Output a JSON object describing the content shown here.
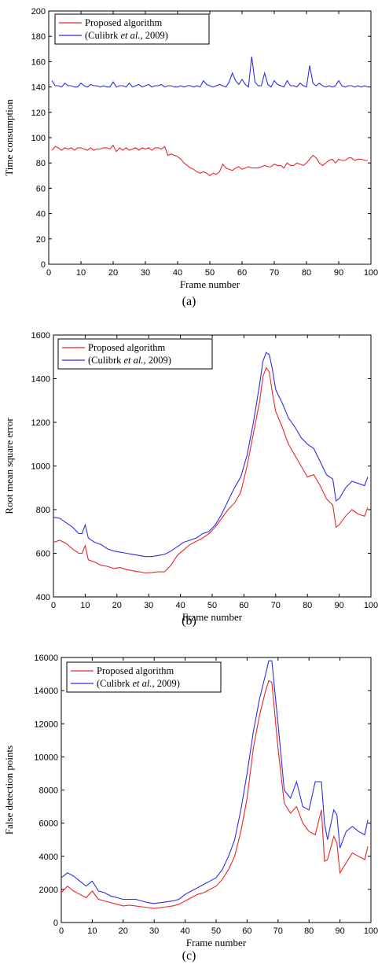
{
  "captions": [
    "(a)",
    "(b)",
    "(c)"
  ],
  "chart_data": [
    {
      "type": "line",
      "caption": "(a)",
      "xlabel": "Frame number",
      "ylabel": "Time consumption",
      "xlim": [
        0,
        100
      ],
      "ylim": [
        0,
        200
      ],
      "xticks": [
        0,
        10,
        20,
        30,
        40,
        50,
        60,
        70,
        80,
        90,
        100
      ],
      "yticks": [
        0,
        20,
        40,
        60,
        80,
        100,
        120,
        140,
        160,
        180,
        200
      ],
      "legend_position": "top-left",
      "series": [
        {
          "name": "Proposed algorithm",
          "color": "#e8262b",
          "x": [
            1,
            2,
            3,
            4,
            5,
            6,
            7,
            8,
            9,
            10,
            11,
            12,
            13,
            14,
            15,
            16,
            17,
            18,
            19,
            20,
            21,
            22,
            23,
            24,
            25,
            26,
            27,
            28,
            29,
            30,
            31,
            32,
            33,
            34,
            35,
            36,
            37,
            38,
            39,
            40,
            41,
            42,
            43,
            44,
            45,
            46,
            47,
            48,
            49,
            50,
            51,
            52,
            53,
            54,
            55,
            56,
            57,
            58,
            59,
            60,
            61,
            62,
            63,
            64,
            65,
            66,
            67,
            68,
            69,
            70,
            71,
            72,
            73,
            74,
            75,
            76,
            77,
            78,
            79,
            80,
            81,
            82,
            83,
            84,
            85,
            86,
            87,
            88,
            89,
            90,
            91,
            92,
            93,
            94,
            95,
            96,
            97,
            98,
            99
          ],
          "y": [
            90,
            93,
            92,
            90,
            92,
            91,
            92,
            90,
            92,
            92,
            91,
            90,
            92,
            90,
            91,
            91,
            92,
            92,
            91,
            94,
            89,
            92,
            90,
            92,
            90,
            91,
            92,
            90,
            92,
            91,
            92,
            90,
            92,
            92,
            91,
            93,
            86,
            87,
            86,
            85,
            83,
            80,
            78,
            76,
            75,
            73,
            72,
            73,
            72,
            70,
            72,
            71,
            73,
            79,
            76,
            75,
            74,
            76,
            77,
            75,
            76,
            77,
            76,
            76,
            76,
            77,
            78,
            77,
            77,
            79,
            78,
            78,
            76,
            80,
            78,
            78,
            80,
            79,
            78,
            80,
            83,
            86,
            84,
            80,
            78,
            80,
            82,
            83,
            80,
            83,
            82,
            82,
            84,
            84,
            82,
            83,
            83,
            82,
            82
          ]
        },
        {
          "name": "(Culibrk et al., 2009)",
          "color": "#2e2ee6",
          "x": [
            1,
            2,
            3,
            4,
            5,
            6,
            7,
            8,
            9,
            10,
            11,
            12,
            13,
            14,
            15,
            16,
            17,
            18,
            19,
            20,
            21,
            22,
            23,
            24,
            25,
            26,
            27,
            28,
            29,
            30,
            31,
            32,
            33,
            34,
            35,
            36,
            37,
            38,
            39,
            40,
            41,
            42,
            43,
            44,
            45,
            46,
            47,
            48,
            49,
            50,
            51,
            52,
            53,
            54,
            55,
            56,
            57,
            58,
            59,
            60,
            61,
            62,
            63,
            64,
            65,
            66,
            67,
            68,
            69,
            70,
            71,
            72,
            73,
            74,
            75,
            76,
            77,
            78,
            79,
            80,
            81,
            82,
            83,
            84,
            85,
            86,
            87,
            88,
            89,
            90,
            91,
            92,
            93,
            94,
            95,
            96,
            97,
            98,
            99
          ],
          "y": [
            145,
            141,
            141,
            140,
            143,
            141,
            141,
            140,
            140,
            143,
            141,
            140,
            142,
            141,
            141,
            140,
            141,
            140,
            140,
            144,
            140,
            141,
            141,
            140,
            143,
            140,
            141,
            142,
            140,
            141,
            142,
            140,
            141,
            141,
            142,
            140,
            141,
            141,
            140,
            140,
            141,
            140,
            141,
            141,
            140,
            141,
            140,
            145,
            142,
            141,
            140,
            141,
            142,
            141,
            140,
            144,
            151,
            145,
            142,
            146,
            142,
            140,
            164,
            144,
            141,
            141,
            151,
            142,
            140,
            145,
            142,
            141,
            140,
            145,
            141,
            141,
            140,
            143,
            141,
            140,
            157,
            143,
            141,
            143,
            141,
            140,
            141,
            140,
            141,
            145,
            141,
            140,
            141,
            141,
            140,
            141,
            140,
            141,
            140
          ]
        }
      ]
    },
    {
      "type": "line",
      "caption": "(b)",
      "xlabel": "Frame number",
      "ylabel": "Root mean square error",
      "xlim": [
        0,
        100
      ],
      "ylim": [
        400,
        1600
      ],
      "xticks": [
        0,
        10,
        20,
        30,
        40,
        50,
        60,
        70,
        80,
        90,
        100
      ],
      "yticks": [
        400,
        600,
        800,
        1000,
        1200,
        1400,
        1600
      ],
      "legend_position": "top-left",
      "series": [
        {
          "name": "Proposed algorithm",
          "color": "#e8262b",
          "x": [
            0,
            2,
            4,
            6,
            8,
            9,
            10,
            11,
            13,
            15,
            17,
            19,
            21,
            23,
            25,
            27,
            29,
            31,
            33,
            35,
            37,
            39,
            41,
            43,
            45,
            47,
            49,
            51,
            53,
            55,
            57,
            59,
            61,
            63,
            65,
            66,
            67,
            68,
            69,
            70,
            72,
            74,
            76,
            78,
            80,
            82,
            84,
            86,
            88,
            89,
            90,
            92,
            94,
            96,
            98,
            99
          ],
          "y": [
            650,
            660,
            645,
            620,
            600,
            600,
            635,
            570,
            560,
            545,
            540,
            530,
            535,
            525,
            520,
            515,
            510,
            512,
            515,
            515,
            545,
            590,
            615,
            640,
            655,
            670,
            690,
            720,
            760,
            800,
            830,
            880,
            1000,
            1150,
            1300,
            1410,
            1450,
            1430,
            1330,
            1250,
            1180,
            1100,
            1050,
            1000,
            950,
            960,
            910,
            850,
            820,
            720,
            730,
            770,
            800,
            780,
            770,
            810
          ]
        },
        {
          "name": "(Culibrk et al., 2009)",
          "color": "#2e2ee6",
          "x": [
            0,
            2,
            4,
            6,
            8,
            9,
            10,
            11,
            13,
            15,
            17,
            19,
            21,
            23,
            25,
            27,
            29,
            31,
            33,
            35,
            37,
            39,
            41,
            43,
            45,
            47,
            49,
            51,
            53,
            55,
            57,
            59,
            61,
            63,
            65,
            66,
            67,
            68,
            69,
            70,
            72,
            74,
            76,
            78,
            80,
            82,
            84,
            86,
            88,
            89,
            90,
            92,
            94,
            96,
            98,
            99
          ],
          "y": [
            765,
            760,
            740,
            720,
            690,
            690,
            730,
            670,
            650,
            640,
            620,
            610,
            605,
            600,
            595,
            590,
            585,
            585,
            590,
            595,
            610,
            630,
            650,
            660,
            670,
            690,
            700,
            730,
            780,
            840,
            900,
            950,
            1050,
            1200,
            1380,
            1480,
            1520,
            1510,
            1440,
            1350,
            1290,
            1220,
            1180,
            1130,
            1100,
            1080,
            1020,
            960,
            940,
            840,
            850,
            900,
            930,
            920,
            910,
            950
          ]
        }
      ]
    },
    {
      "type": "line",
      "caption": "(c)",
      "xlabel": "Frame number",
      "ylabel": "False detection points",
      "xlim": [
        0,
        100
      ],
      "ylim": [
        0,
        16000
      ],
      "xticks": [
        0,
        10,
        20,
        30,
        40,
        50,
        60,
        70,
        80,
        90,
        100
      ],
      "yticks": [
        0,
        2000,
        4000,
        6000,
        8000,
        10000,
        12000,
        14000,
        16000
      ],
      "legend_position": "top-left",
      "series": [
        {
          "name": "Proposed algorithm",
          "color": "#e8262b",
          "x": [
            0,
            2,
            4,
            6,
            8,
            10,
            12,
            14,
            16,
            18,
            20,
            22,
            24,
            26,
            28,
            30,
            32,
            34,
            36,
            38,
            40,
            42,
            44,
            46,
            48,
            50,
            52,
            54,
            56,
            58,
            60,
            62,
            64,
            66,
            67,
            68,
            70,
            72,
            74,
            76,
            78,
            80,
            82,
            84,
            85,
            86,
            88,
            89,
            90,
            92,
            94,
            96,
            98,
            99
          ],
          "y": [
            1800,
            2200,
            1900,
            1700,
            1500,
            1900,
            1400,
            1300,
            1200,
            1100,
            1000,
            1050,
            1000,
            950,
            900,
            850,
            900,
            950,
            1000,
            1100,
            1300,
            1500,
            1700,
            1800,
            2000,
            2200,
            2600,
            3200,
            4000,
            5500,
            7500,
            10500,
            12500,
            14000,
            14600,
            14500,
            10500,
            7200,
            6600,
            7000,
            6000,
            5500,
            5300,
            6800,
            3700,
            3800,
            5200,
            4800,
            3000,
            3600,
            4200,
            4000,
            3800,
            4600
          ]
        },
        {
          "name": "(Culibrk et al., 2009)",
          "color": "#2e2ee6",
          "x": [
            0,
            2,
            4,
            6,
            8,
            10,
            12,
            14,
            16,
            18,
            20,
            22,
            24,
            26,
            28,
            30,
            32,
            34,
            36,
            38,
            40,
            42,
            44,
            46,
            48,
            50,
            52,
            54,
            56,
            58,
            60,
            62,
            64,
            66,
            67,
            68,
            70,
            72,
            74,
            76,
            78,
            80,
            82,
            84,
            85,
            86,
            88,
            89,
            90,
            92,
            94,
            96,
            98,
            99
          ],
          "y": [
            2700,
            3000,
            2800,
            2500,
            2200,
            2500,
            1900,
            1800,
            1600,
            1500,
            1400,
            1400,
            1400,
            1300,
            1200,
            1150,
            1200,
            1250,
            1300,
            1400,
            1700,
            1900,
            2100,
            2300,
            2500,
            2700,
            3200,
            4000,
            5000,
            6800,
            9000,
            11500,
            13500,
            15000,
            15800,
            15800,
            12000,
            8000,
            7500,
            8500,
            7000,
            6800,
            8500,
            8500,
            6000,
            5000,
            6800,
            6500,
            4500,
            5500,
            5800,
            5500,
            5300,
            6200
          ]
        }
      ]
    }
  ]
}
